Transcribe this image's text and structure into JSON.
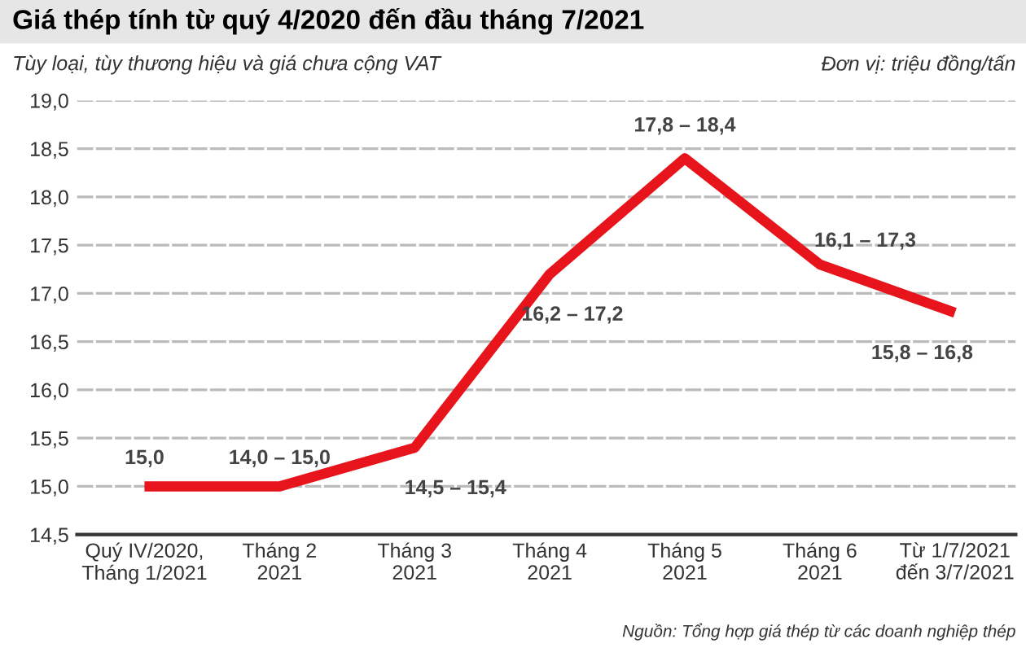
{
  "chart_data": {
    "type": "line",
    "title": "Giá thép tính từ quý 4/2020 đến đầu tháng 7/2021",
    "subtitle": "Tùy loại, tùy thương hiệu và giá chưa cộng VAT",
    "annotations": [
      "Đơn vị: triệu đồng/tấn",
      "Nguồn: Tổng hợp giá thép từ các doanh nghiệp thép",
      {
        "text": "15,0",
        "x": "Quý IV/2020,\nTháng 1/2021",
        "y": 15.0
      },
      {
        "text": "14,0 – 15,0",
        "x": "Tháng 2\n2021",
        "y": 15.0
      },
      {
        "text": "14,5 – 15,4",
        "x": "Tháng 3\n2021",
        "y": 15.4
      },
      {
        "text": "16,2 – 17,2",
        "x": "Tháng 4\n2021",
        "y": 17.2
      },
      {
        "text": "17,8 – 18,4",
        "x": "Tháng 5\n2021",
        "y": 18.4
      },
      {
        "text": "16,1 – 17,3",
        "x": "Tháng 6\n2021",
        "y": 17.3
      },
      {
        "text": "15,8 – 16,8",
        "x": "Từ 1/7/2021\nđến 3/7/2021",
        "y": 16.8
      }
    ],
    "categories": [
      "Quý IV/2020,\nTháng 1/2021",
      "Tháng 2\n2021",
      "Tháng 3\n2021",
      "Tháng 4\n2021",
      "Tháng 5\n2021",
      "Tháng 6\n2021",
      "Từ 1/7/2021\nđến 3/7/2021"
    ],
    "series": [
      {
        "color": "#e8141c",
        "values": [
          15.0,
          15.0,
          15.4,
          17.2,
          18.4,
          17.3,
          16.8
        ]
      }
    ],
    "ylim": [
      14.5,
      19.0
    ],
    "yticks": [
      {
        "value": 14.5,
        "label": "14,5"
      },
      {
        "value": 15.0,
        "label": "15,0"
      },
      {
        "value": 15.5,
        "label": "15,5"
      },
      {
        "value": 16.0,
        "label": "16,0"
      },
      {
        "value": 16.5,
        "label": "16,5"
      },
      {
        "value": 17.0,
        "label": "17,0"
      },
      {
        "value": 17.5,
        "label": "17,5"
      },
      {
        "value": 18.0,
        "label": "18,0"
      },
      {
        "value": 18.5,
        "label": "18,5"
      },
      {
        "value": 19.0,
        "label": "19,0"
      }
    ],
    "grid": "y",
    "legend": false,
    "marker": "none",
    "line_style": "solid"
  }
}
